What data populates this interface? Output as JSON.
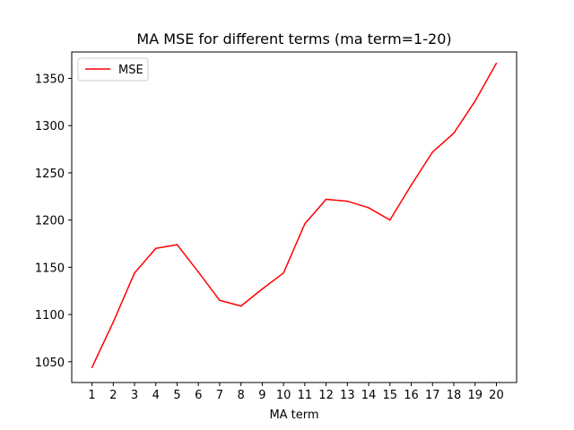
{
  "chart_data": {
    "type": "line",
    "title": "MA MSE for different terms (ma term=1-20)",
    "xlabel": "MA term",
    "ylabel": "",
    "x": [
      1,
      2,
      3,
      4,
      5,
      6,
      7,
      8,
      9,
      10,
      11,
      12,
      13,
      14,
      15,
      16,
      17,
      18,
      19,
      20
    ],
    "xticks": [
      "1",
      "2",
      "3",
      "4",
      "5",
      "6",
      "7",
      "8",
      "9",
      "10",
      "11",
      "12",
      "13",
      "14",
      "15",
      "16",
      "17",
      "18",
      "19",
      "20"
    ],
    "yticks": [
      1050,
      1100,
      1150,
      1200,
      1250,
      1300,
      1350
    ],
    "ylim": [
      1028,
      1378
    ],
    "xlim": [
      0.05,
      20.95
    ],
    "series": [
      {
        "name": "MSE",
        "color": "#ff0000",
        "values": [
          1044,
          1092,
          1144,
          1170,
          1174,
          1145,
          1115,
          1109,
          1127,
          1144,
          1196,
          1222,
          1220,
          1213,
          1200,
          1237,
          1272,
          1292,
          1326,
          1366
        ]
      }
    ],
    "legend": "upper-left",
    "grid": false
  }
}
